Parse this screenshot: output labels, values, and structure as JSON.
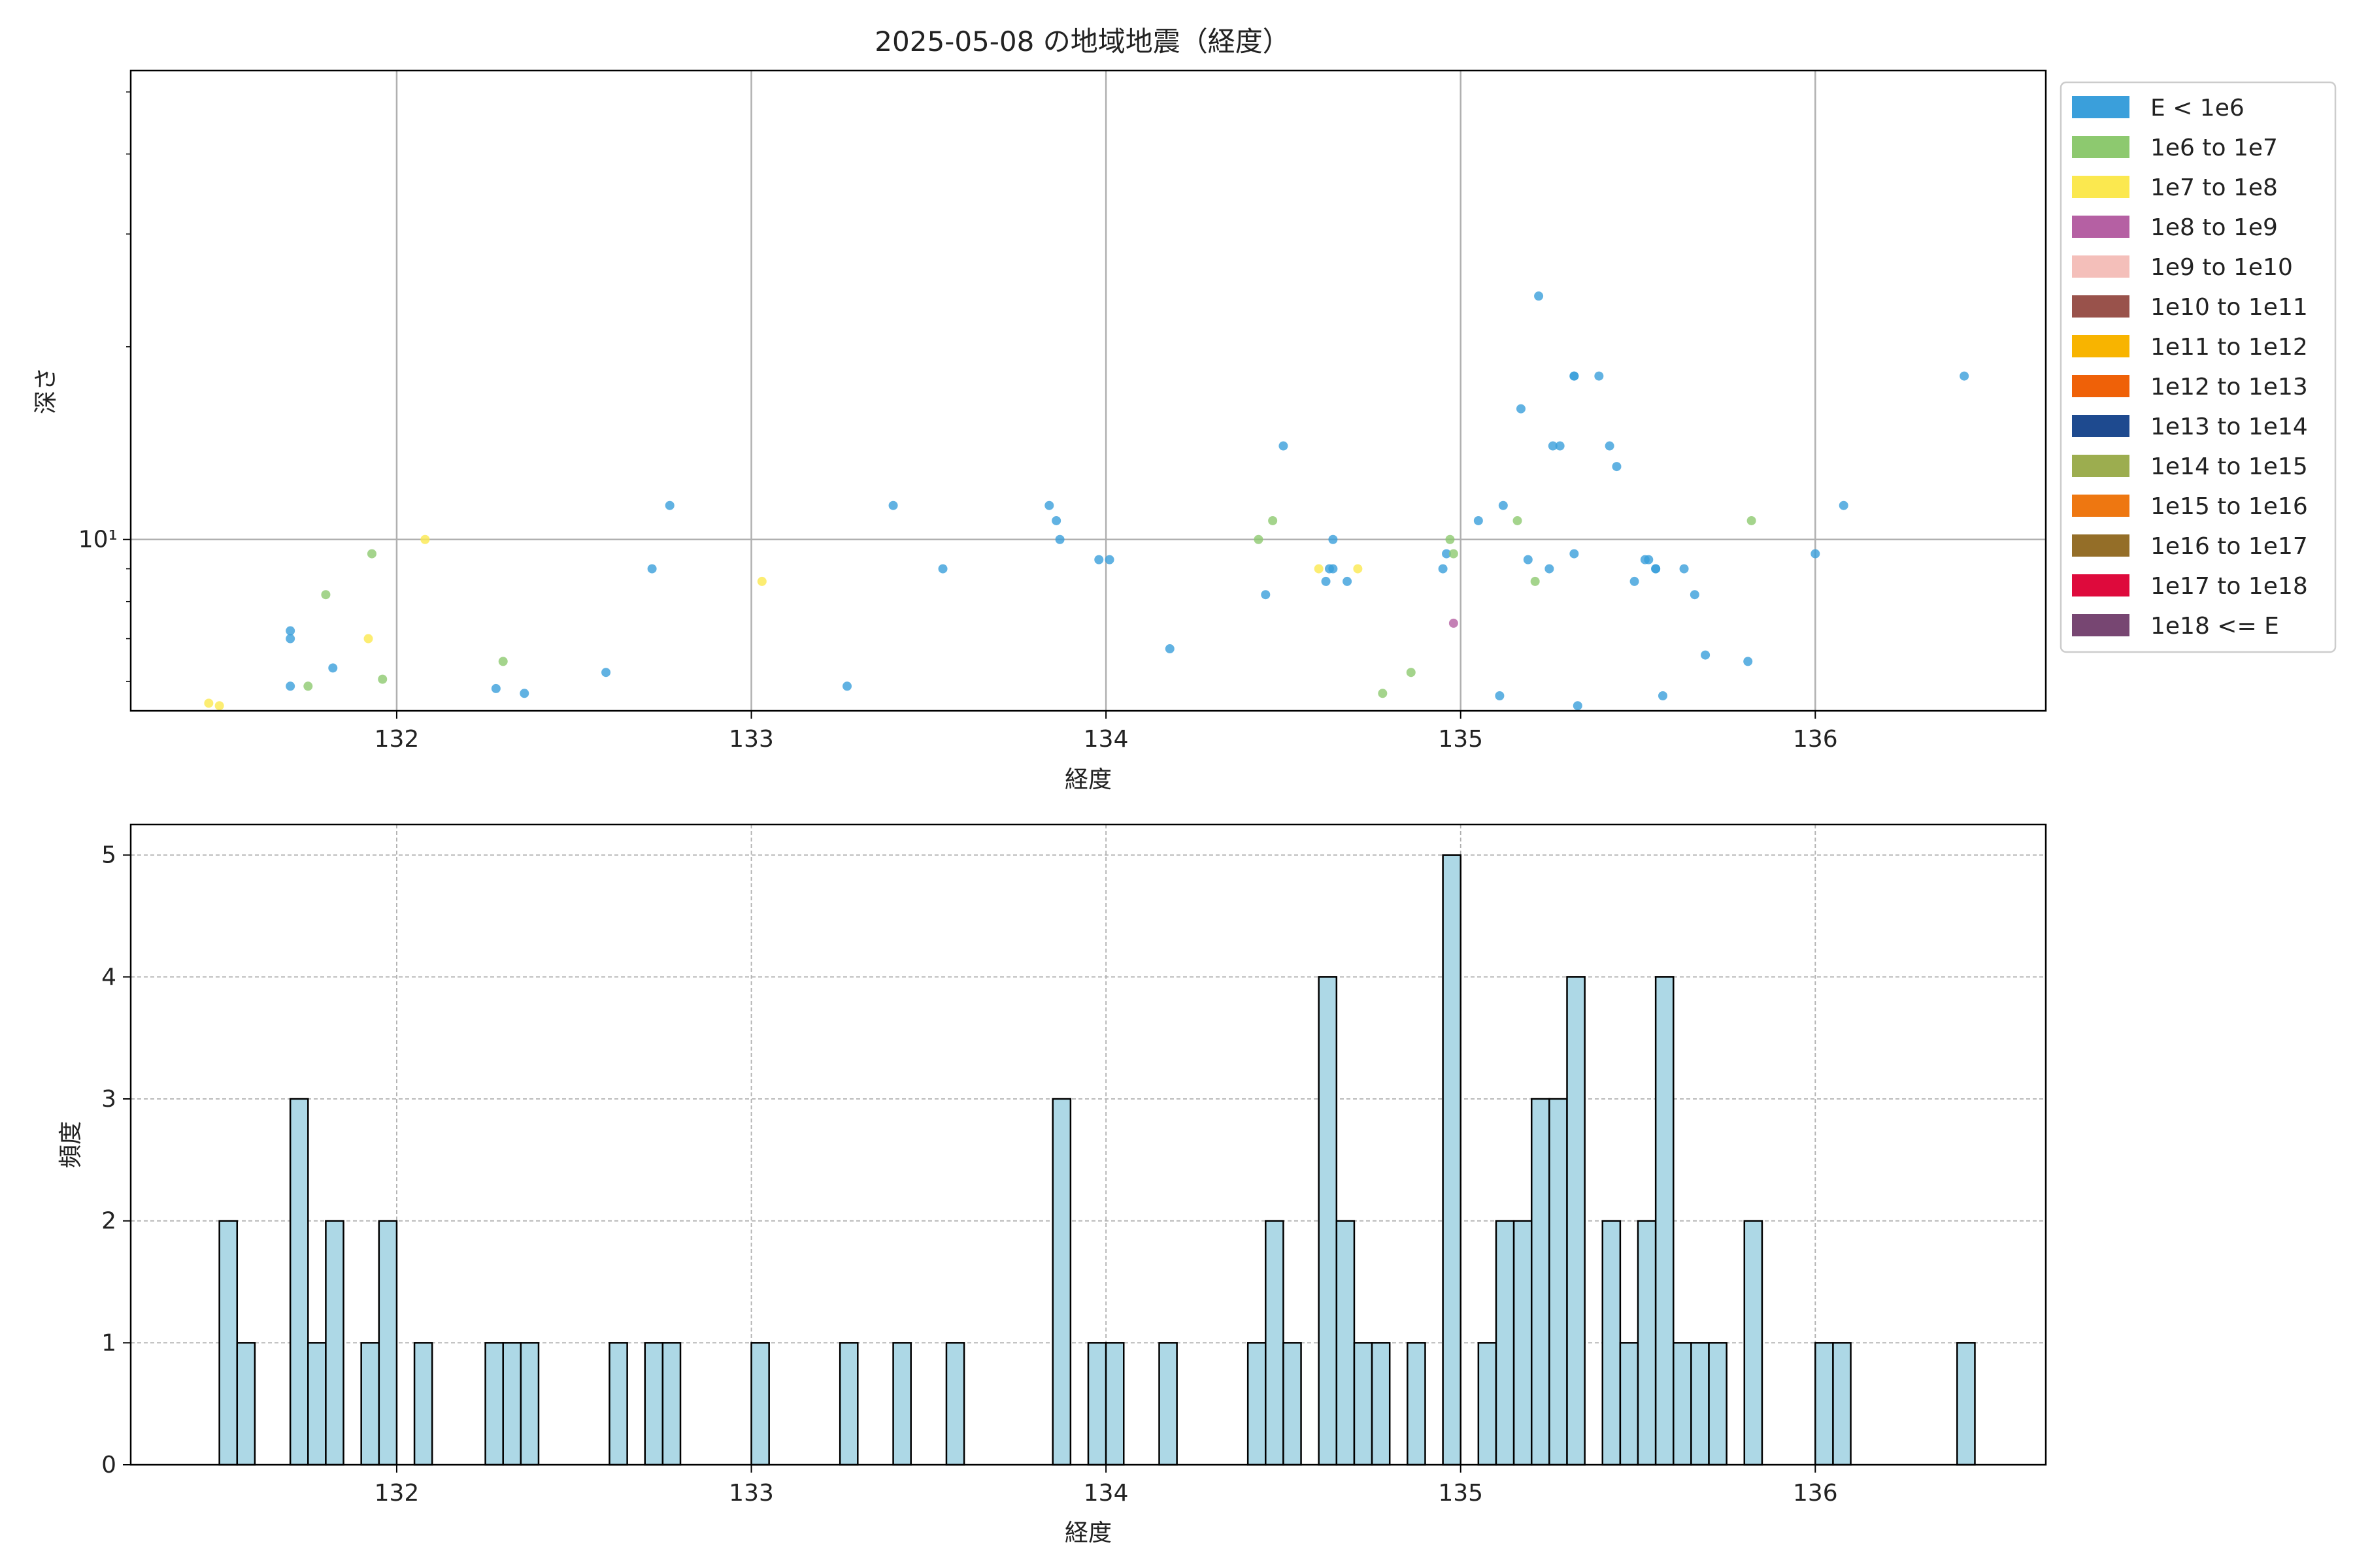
{
  "figure": {
    "title": "2025-05-08 の地域地震（経度）"
  },
  "chart_data": [
    {
      "type": "scatter",
      "title": "2025-05-08 の地域地震（経度）",
      "xlabel": "経度",
      "ylabel": "深さ",
      "yscale": "log",
      "xlim": [
        131.25,
        136.65
      ],
      "ylim": [
        5.4,
        54
      ],
      "xticks": [
        132,
        133,
        134,
        135,
        136
      ],
      "xtick_labels": [
        "132",
        "133",
        "134",
        "135",
        "136"
      ],
      "yticks": [
        10
      ],
      "ytick_labels": [
        "10¹"
      ],
      "grid": true,
      "legend_position": "right outside",
      "legend": [
        {
          "label": "E < 1e6",
          "color": "#3a9fdb"
        },
        {
          "label": "1e6 to 1e7",
          "color": "#8dc96f"
        },
        {
          "label": "1e7 to 1e8",
          "color": "#fbe84f"
        },
        {
          "label": "1e8 to 1e9",
          "color": "#b560a3"
        },
        {
          "label": "1e9 to 1e10",
          "color": "#f4bfba"
        },
        {
          "label": "1e10 to 1e11",
          "color": "#99524b"
        },
        {
          "label": "1e11 to 1e12",
          "color": "#f8b400"
        },
        {
          "label": "1e12 to 1e13",
          "color": "#ef6108"
        },
        {
          "label": "1e13 to 1e14",
          "color": "#1e4a8f"
        },
        {
          "label": "1e14 to 1e15",
          "color": "#9cad4f"
        },
        {
          "label": "1e15 to 1e16",
          "color": "#ee7711"
        },
        {
          "label": "1e16 to 1e17",
          "color": "#946e28"
        },
        {
          "label": "1e17 to 1e18",
          "color": "#de0a3c"
        },
        {
          "label": "1e18 <= E",
          "color": "#774672"
        }
      ],
      "series": [
        {
          "color": "#3a9fdb",
          "points": [
            [
              131.7,
              7.2
            ],
            [
              131.7,
              7.0
            ],
            [
              131.7,
              5.9
            ],
            [
              131.82,
              6.3
            ],
            [
              132.28,
              5.85
            ],
            [
              132.36,
              5.75
            ],
            [
              132.59,
              6.2
            ],
            [
              132.72,
              9.0
            ],
            [
              132.77,
              11.3
            ],
            [
              133.27,
              5.9
            ],
            [
              133.4,
              11.3
            ],
            [
              133.54,
              9.0
            ],
            [
              133.84,
              11.3
            ],
            [
              133.86,
              10.7
            ],
            [
              133.87,
              10.0
            ],
            [
              133.98,
              9.3
            ],
            [
              134.01,
              9.3
            ],
            [
              134.18,
              6.75
            ],
            [
              134.45,
              8.2
            ],
            [
              134.5,
              14.0
            ],
            [
              134.62,
              8.6
            ],
            [
              134.63,
              9.0
            ],
            [
              134.64,
              9.0
            ],
            [
              134.64,
              10.0
            ],
            [
              134.68,
              8.6
            ],
            [
              134.95,
              9.0
            ],
            [
              134.96,
              9.5
            ],
            [
              135.05,
              10.7
            ],
            [
              135.11,
              5.7
            ],
            [
              135.12,
              11.3
            ],
            [
              135.17,
              16.0
            ],
            [
              135.19,
              9.3
            ],
            [
              135.22,
              24.0
            ],
            [
              135.25,
              9.0
            ],
            [
              135.26,
              14.0
            ],
            [
              135.28,
              14.0
            ],
            [
              135.32,
              9.5
            ],
            [
              135.32,
              18.0
            ],
            [
              135.32,
              18.0
            ],
            [
              135.33,
              5.5
            ],
            [
              135.39,
              18.0
            ],
            [
              135.42,
              14.0
            ],
            [
              135.44,
              13.0
            ],
            [
              135.49,
              8.6
            ],
            [
              135.52,
              9.3
            ],
            [
              135.53,
              9.3
            ],
            [
              135.55,
              9.0
            ],
            [
              135.55,
              9.0
            ],
            [
              135.57,
              5.7
            ],
            [
              135.63,
              9.0
            ],
            [
              135.66,
              8.2
            ],
            [
              135.69,
              6.6
            ],
            [
              135.81,
              6.45
            ],
            [
              136.0,
              9.5
            ],
            [
              136.08,
              11.3
            ],
            [
              136.42,
              18.0
            ]
          ]
        },
        {
          "color": "#8dc96f",
          "points": [
            [
              131.75,
              5.9
            ],
            [
              131.8,
              8.2
            ],
            [
              131.93,
              9.5
            ],
            [
              131.96,
              6.05
            ],
            [
              132.3,
              6.45
            ],
            [
              134.43,
              10.0
            ],
            [
              134.47,
              10.7
            ],
            [
              134.78,
              5.75
            ],
            [
              134.86,
              6.2
            ],
            [
              134.97,
              10.0
            ],
            [
              134.98,
              9.5
            ],
            [
              135.16,
              10.7
            ],
            [
              135.21,
              8.6
            ],
            [
              135.82,
              10.7
            ]
          ]
        },
        {
          "color": "#fbe84f",
          "points": [
            [
              131.47,
              5.55
            ],
            [
              131.5,
              5.5
            ],
            [
              131.92,
              7.0
            ],
            [
              132.08,
              10.0
            ],
            [
              133.03,
              8.6
            ],
            [
              134.6,
              9.0
            ],
            [
              134.71,
              9.0
            ]
          ]
        },
        {
          "color": "#b560a3",
          "points": [
            [
              134.98,
              7.4
            ]
          ]
        }
      ]
    },
    {
      "type": "bar",
      "subtype": "histogram",
      "xlabel": "経度",
      "ylabel": "頻度",
      "xlim": [
        131.25,
        136.65
      ],
      "ylim": [
        0,
        5.25
      ],
      "xticks": [
        132,
        133,
        134,
        135,
        136
      ],
      "xtick_labels": [
        "132",
        "133",
        "134",
        "135",
        "136"
      ],
      "yticks": [
        0,
        1,
        2,
        3,
        4,
        5
      ],
      "ytick_labels": [
        "0",
        "1",
        "2",
        "3",
        "4",
        "5"
      ],
      "grid": true,
      "bar_color": "#add8e6",
      "bin_width": 0.05,
      "bins": [
        [
          131.5,
          2
        ],
        [
          131.55,
          1
        ],
        [
          131.7,
          3
        ],
        [
          131.75,
          1
        ],
        [
          131.8,
          2
        ],
        [
          131.9,
          1
        ],
        [
          131.95,
          2
        ],
        [
          132.05,
          1
        ],
        [
          132.25,
          1
        ],
        [
          132.3,
          1
        ],
        [
          132.35,
          1
        ],
        [
          132.6,
          1
        ],
        [
          132.7,
          1
        ],
        [
          132.75,
          1
        ],
        [
          133.0,
          1
        ],
        [
          133.25,
          1
        ],
        [
          133.4,
          1
        ],
        [
          133.55,
          1
        ],
        [
          133.85,
          3
        ],
        [
          133.95,
          1
        ],
        [
          134.0,
          1
        ],
        [
          134.15,
          1
        ],
        [
          134.4,
          1
        ],
        [
          134.45,
          2
        ],
        [
          134.5,
          1
        ],
        [
          134.6,
          4
        ],
        [
          134.65,
          2
        ],
        [
          134.7,
          1
        ],
        [
          134.75,
          1
        ],
        [
          134.85,
          1
        ],
        [
          134.95,
          5
        ],
        [
          135.05,
          1
        ],
        [
          135.1,
          2
        ],
        [
          135.15,
          2
        ],
        [
          135.2,
          3
        ],
        [
          135.25,
          3
        ],
        [
          135.3,
          4
        ],
        [
          135.4,
          2
        ],
        [
          135.45,
          1
        ],
        [
          135.5,
          2
        ],
        [
          135.55,
          4
        ],
        [
          135.6,
          1
        ],
        [
          135.65,
          1
        ],
        [
          135.7,
          1
        ],
        [
          135.8,
          2
        ],
        [
          136.0,
          1
        ],
        [
          136.05,
          1
        ],
        [
          136.4,
          1
        ]
      ]
    }
  ]
}
